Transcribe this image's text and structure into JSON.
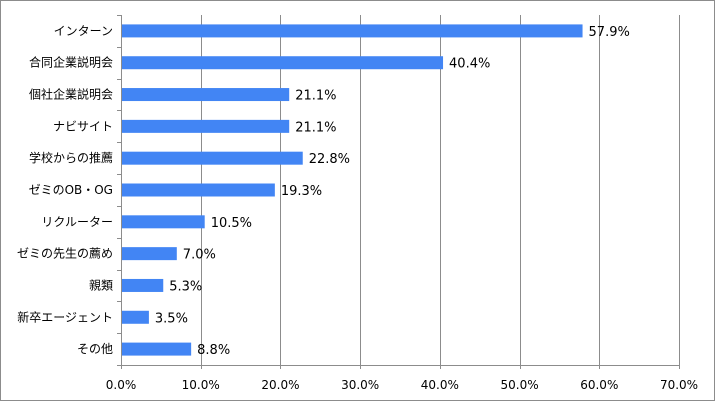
{
  "chart_data": {
    "type": "bar",
    "orientation": "horizontal",
    "categories": [
      "インターン",
      "合同企業説明会",
      "個社企業説明会",
      "ナビサイト",
      "学校からの推薦",
      "ゼミのOB・OG",
      "リクルーター",
      "ゼミの先生の薦め",
      "親類",
      "新卒エージェント",
      "その他"
    ],
    "values": [
      57.9,
      40.4,
      21.1,
      21.1,
      22.8,
      19.3,
      10.5,
      7.0,
      5.3,
      3.5,
      8.8
    ],
    "value_labels": [
      "57.9%",
      "40.4%",
      "21.1%",
      "21.1%",
      "22.8%",
      "19.3%",
      "10.5%",
      "7.0%",
      "5.3%",
      "3.5%",
      "8.8%"
    ],
    "xlim": [
      0,
      70
    ],
    "x_ticks": [
      0,
      10,
      20,
      30,
      40,
      50,
      60,
      70
    ],
    "x_tick_labels": [
      "0.0%",
      "10.0%",
      "20.0%",
      "30.0%",
      "40.0%",
      "50.0%",
      "60.0%",
      "70.0%"
    ],
    "grid": "vertical",
    "legend": "none",
    "colors": {
      "bar": "#4285f4",
      "grid": "#8c8c8c",
      "axis": "#8c8c8c",
      "frame": "#8c8c8c"
    }
  }
}
